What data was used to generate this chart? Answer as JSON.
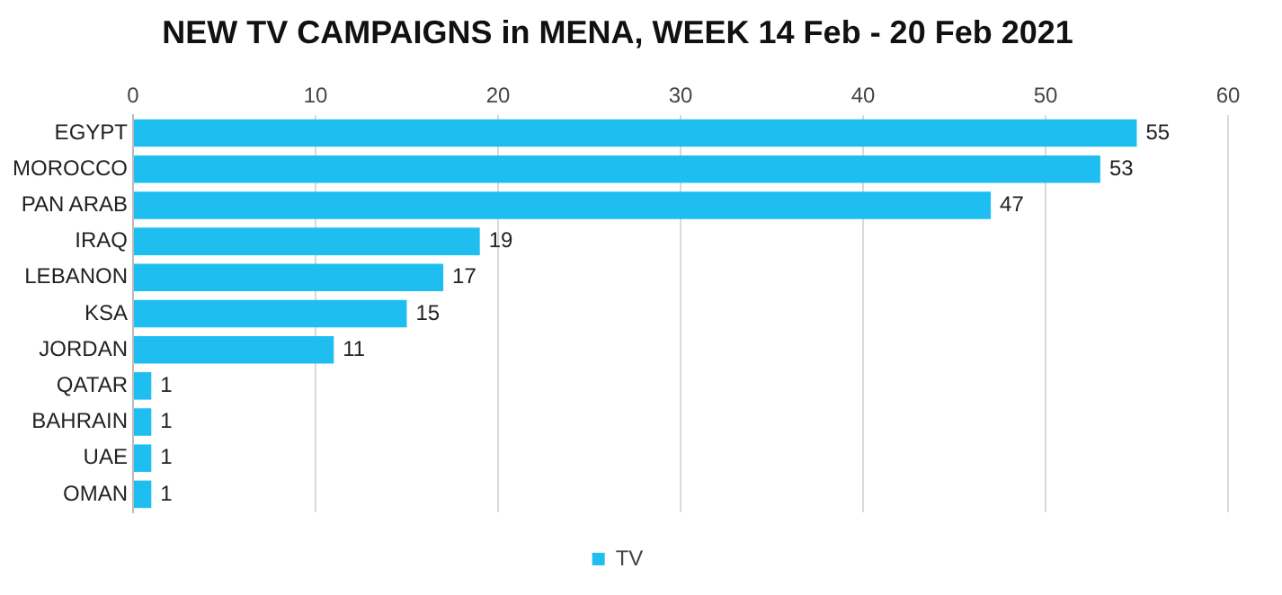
{
  "chart_data": {
    "type": "bar",
    "orientation": "horizontal",
    "title": "NEW TV CAMPAIGNS in MENA, WEEK 14 Feb - 20 Feb 2021",
    "categories": [
      "EGYPT",
      "MOROCCO",
      "PAN ARAB",
      "IRAQ",
      "LEBANON",
      "KSA",
      "JORDAN",
      "QATAR",
      "BAHRAIN",
      "UAE",
      "OMAN"
    ],
    "series": [
      {
        "name": "TV",
        "color": "#1ebff0",
        "values": [
          55,
          53,
          47,
          19,
          17,
          15,
          11,
          1,
          1,
          1,
          1
        ]
      }
    ],
    "xlim": [
      0,
      60
    ],
    "xticks": [
      0,
      10,
      20,
      30,
      40,
      50,
      60
    ],
    "grid": "x",
    "legend": "bottom",
    "data_labels": true
  }
}
